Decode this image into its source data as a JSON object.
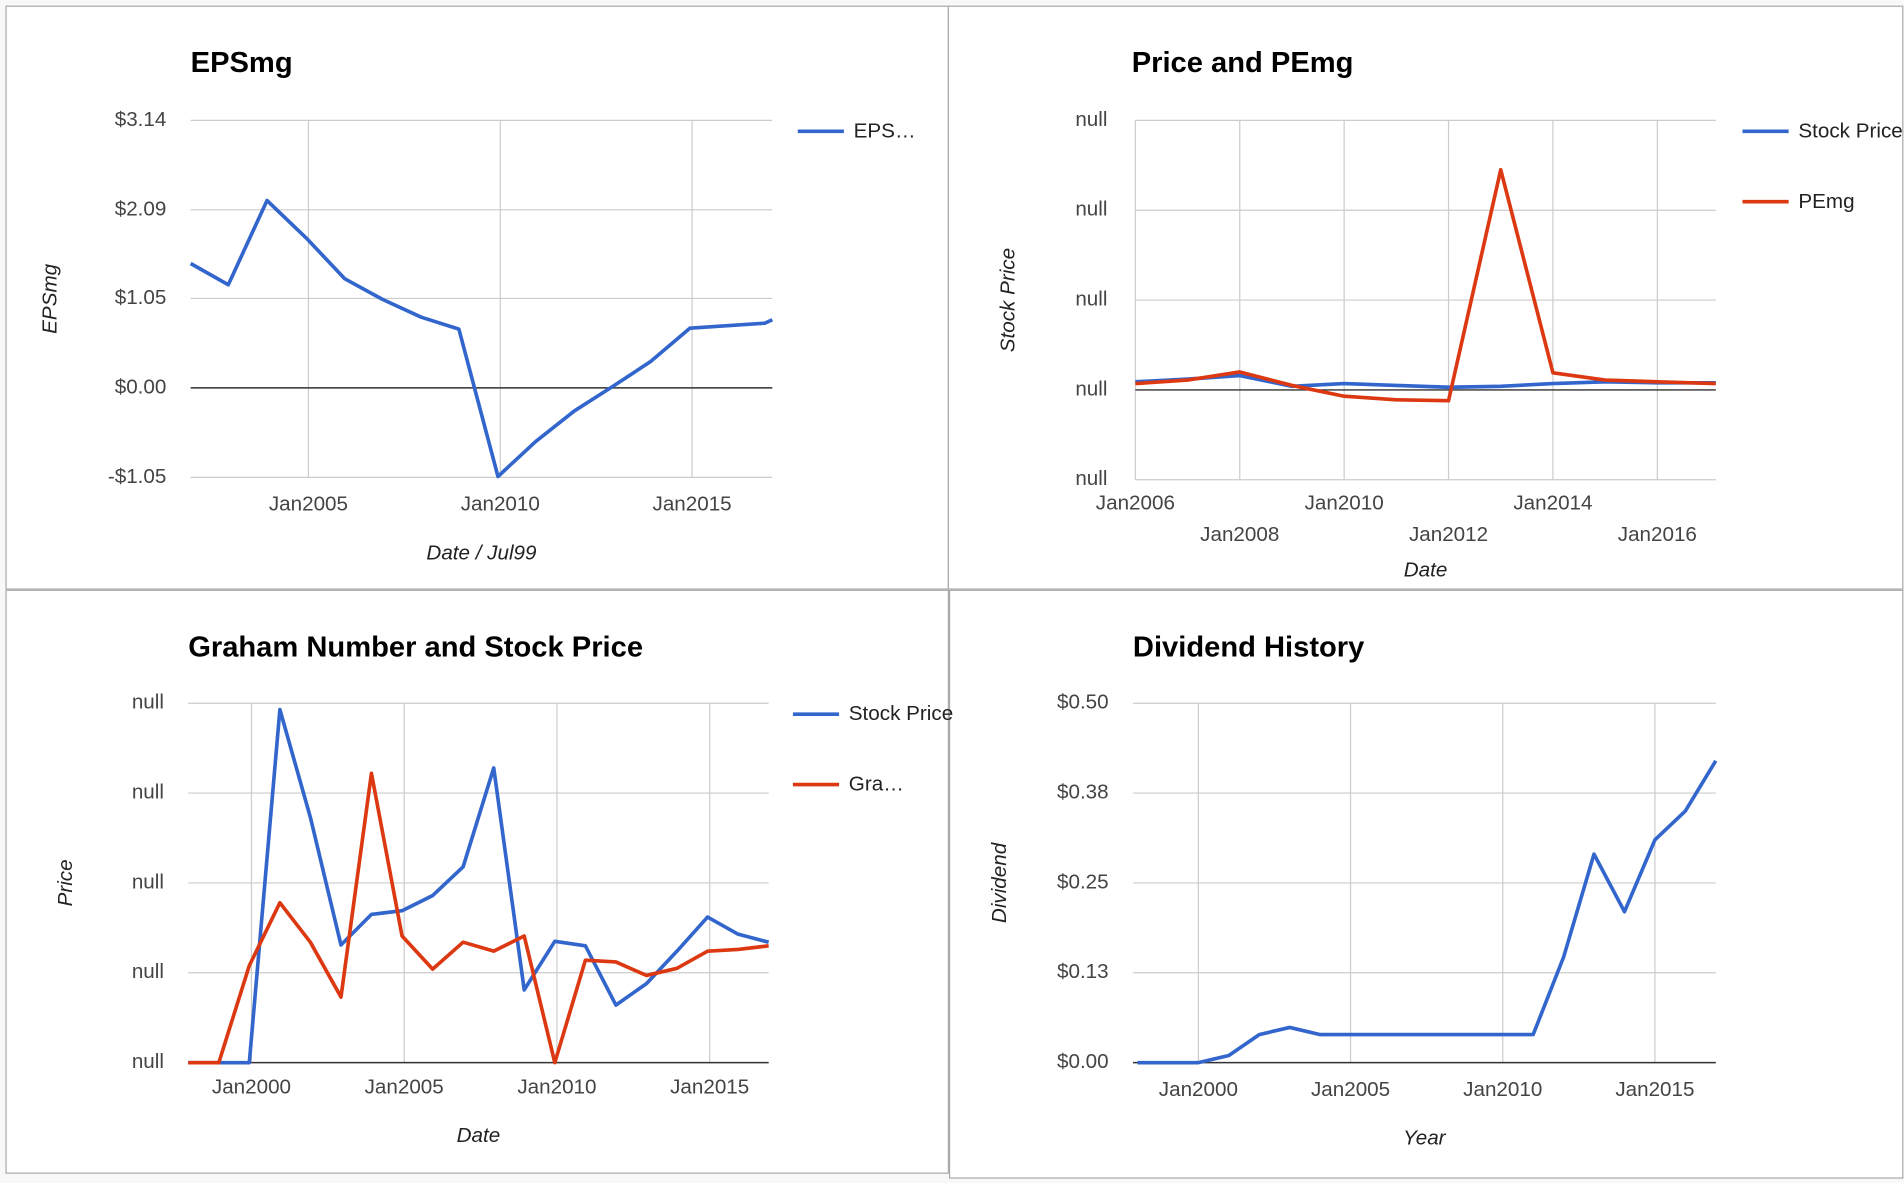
{
  "chart_data": [
    {
      "type": "line",
      "title": "EPSmg",
      "xlabel": "Date / Jul99",
      "ylabel": "EPSmg",
      "x": [
        2001.93,
        2002.91,
        2003.92,
        2004.94,
        2005.95,
        2006.93,
        2007.94,
        2008.92,
        2009.94,
        2010.92,
        2011.93,
        2012.91,
        2013.92,
        2014.94,
        2016.9,
        2017.09
      ],
      "series": [
        {
          "name": "EPS…",
          "color": "#3366cc",
          "values": [
            1.46,
            1.21,
            2.2,
            1.76,
            1.28,
            1.04,
            0.83,
            0.69,
            -1.04,
            -0.63,
            -0.27,
            0.01,
            0.31,
            0.7,
            0.76,
            0.8
          ]
        }
      ],
      "xlim": [
        2001.93,
        2017.09
      ],
      "xticks": [
        {
          "value": 2005,
          "label": "Jan2005"
        },
        {
          "value": 2010,
          "label": "Jan2010"
        },
        {
          "value": 2015,
          "label": "Jan2015"
        }
      ],
      "ylim": [
        -1.05,
        3.14
      ],
      "yticks": [
        {
          "value": 3.14,
          "label": "$3.14"
        },
        {
          "value": 2.09,
          "label": "$2.09"
        },
        {
          "value": 1.05,
          "label": "$1.05"
        },
        {
          "value": 0,
          "label": "$0.00"
        },
        {
          "value": -1.05,
          "label": "-$1.05"
        }
      ],
      "grid": true
    },
    {
      "type": "line",
      "title": "Price and PEmg",
      "xlabel": "Date",
      "ylabel": "Stock Price",
      "x": [
        2006,
        2007,
        2008,
        2009,
        2010,
        2011,
        2012,
        2013,
        2014,
        2015,
        2016,
        2017.12
      ],
      "series": [
        {
          "name": "Stock Price",
          "color": "#3366cc",
          "values": [
            0.09,
            0.12,
            0.16,
            0.04,
            0.07,
            0.05,
            0.03,
            0.04,
            0.07,
            0.09,
            0.08,
            0.08
          ]
        },
        {
          "name": "PEmg",
          "color": "#dc3912",
          "values": [
            0.07,
            0.11,
            0.2,
            0.05,
            -0.07,
            -0.11,
            -0.12,
            2.45,
            0.19,
            0.11,
            0.09,
            0.07
          ]
        }
      ],
      "xlim": [
        2006,
        2017.12
      ],
      "xticks": [
        {
          "value": 2006,
          "label": "Jan2006"
        },
        {
          "value": 2008,
          "label": "Jan2008"
        },
        {
          "value": 2010,
          "label": "Jan2010"
        },
        {
          "value": 2012,
          "label": "Jan2012"
        },
        {
          "value": 2014,
          "label": "Jan2014"
        },
        {
          "value": 2016,
          "label": "Jan2016"
        }
      ],
      "ylim": [
        -1,
        3
      ],
      "yticks": [
        {
          "value": 3,
          "label": "null"
        },
        {
          "value": 2,
          "label": "null"
        },
        {
          "value": 1,
          "label": "null"
        },
        {
          "value": 0,
          "label": "null"
        },
        {
          "value": -1,
          "label": "null"
        }
      ],
      "grid": true
    },
    {
      "type": "line",
      "title": "Graham Number and Stock Price",
      "xlabel": "Date",
      "ylabel": "Price",
      "x": [
        1997.93,
        1998.93,
        1999.93,
        2000.93,
        2001.93,
        2002.93,
        2003.93,
        2004.93,
        2005.93,
        2006.93,
        2007.93,
        2008.93,
        2009.93,
        2010.93,
        2011.93,
        2012.93,
        2013.93,
        2014.93,
        2015.93,
        2016.93
      ],
      "series": [
        {
          "name": "Stock Price",
          "color": "#3366cc",
          "values": [
            0,
            0,
            0,
            3.93,
            2.73,
            1.31,
            1.65,
            1.69,
            1.86,
            2.18,
            3.28,
            0.81,
            1.35,
            1.3,
            0.64,
            0.88,
            1.24,
            1.62,
            1.43,
            1.34
          ]
        },
        {
          "name": "Gra…",
          "color": "#dc3912",
          "values": [
            0,
            0,
            1.08,
            1.78,
            1.34,
            0.73,
            3.22,
            1.41,
            1.04,
            1.34,
            1.24,
            1.41,
            0,
            1.14,
            1.12,
            0.97,
            1.05,
            1.24,
            1.26,
            1.3
          ]
        }
      ],
      "xlim": [
        1997.93,
        2016.93
      ],
      "xticks": [
        {
          "value": 2000,
          "label": "Jan2000"
        },
        {
          "value": 2005,
          "label": "Jan2005"
        },
        {
          "value": 2010,
          "label": "Jan2010"
        },
        {
          "value": 2015,
          "label": "Jan2015"
        }
      ],
      "ylim": [
        0,
        4
      ],
      "yticks": [
        {
          "value": 4,
          "label": "null"
        },
        {
          "value": 3,
          "label": "null"
        },
        {
          "value": 2,
          "label": "null"
        },
        {
          "value": 1,
          "label": "null"
        },
        {
          "value": 0,
          "label": "null"
        }
      ],
      "grid": true
    },
    {
      "type": "line",
      "title": "Dividend History",
      "xlabel": "Year",
      "ylabel": "Dividend",
      "x": [
        1998,
        1999,
        2000,
        2001,
        2002,
        2003,
        2004,
        2005,
        2006,
        2007,
        2008,
        2009,
        2010,
        2011,
        2012,
        2013,
        2014,
        2015,
        2016,
        2017
      ],
      "series": [
        {
          "color": "#3366cc",
          "values": [
            0,
            0,
            0,
            0.01,
            0.039,
            0.049,
            0.039,
            0.039,
            0.039,
            0.039,
            0.039,
            0.039,
            0.039,
            0.039,
            0.147,
            0.29,
            0.21,
            0.31,
            0.35,
            0.42
          ]
        }
      ],
      "xlim": [
        1997.85,
        2017
      ],
      "xticks": [
        {
          "value": 2000,
          "label": "Jan2000"
        },
        {
          "value": 2005,
          "label": "Jan2005"
        },
        {
          "value": 2010,
          "label": "Jan2010"
        },
        {
          "value": 2015,
          "label": "Jan2015"
        }
      ],
      "ylim": [
        0,
        0.5
      ],
      "yticks": [
        {
          "value": 0.5,
          "label": "$0.50"
        },
        {
          "value": 0.375,
          "label": "$0.38"
        },
        {
          "value": 0.25,
          "label": "$0.25"
        },
        {
          "value": 0.125,
          "label": "$0.13"
        },
        {
          "value": 0,
          "label": "$0.00"
        }
      ],
      "grid": true
    }
  ]
}
